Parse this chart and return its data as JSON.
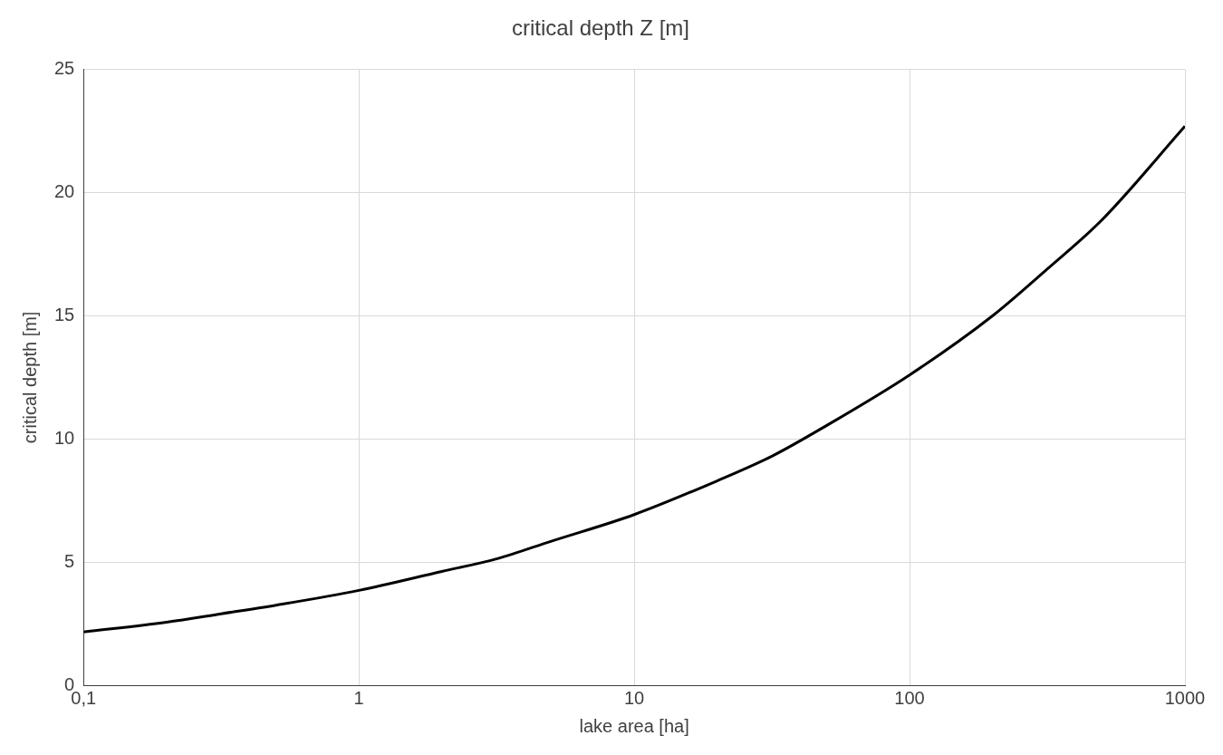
{
  "chart_data": {
    "type": "line",
    "title": "critical depth Z [m]",
    "xlabel": "lake area [ha]",
    "ylabel": "critical depth [m]",
    "log": "x",
    "grid": true,
    "legend": false,
    "marker": "none",
    "line_style": "solid",
    "xlim": [
      0.1,
      1000
    ],
    "xticks": [
      {
        "value": 0.1,
        "label": "0,1"
      },
      1,
      10,
      100,
      1000
    ],
    "ylim": [
      0,
      25
    ],
    "yticks": [
      0,
      5,
      10,
      15,
      20,
      25
    ],
    "series": [
      {
        "color": "#000000",
        "x": [
          0.1,
          0.2,
          0.316,
          0.5,
          1,
          2,
          3.16,
          5,
          10,
          20,
          31.6,
          50,
          100,
          200,
          316,
          500,
          1000
        ],
        "values": [
          2.16,
          2.56,
          2.9,
          3.25,
          3.85,
          4.62,
          5.13,
          5.85,
          6.93,
          8.3,
          9.3,
          10.55,
          12.6,
          15.0,
          16.9,
          18.9,
          22.7
        ]
      }
    ]
  }
}
